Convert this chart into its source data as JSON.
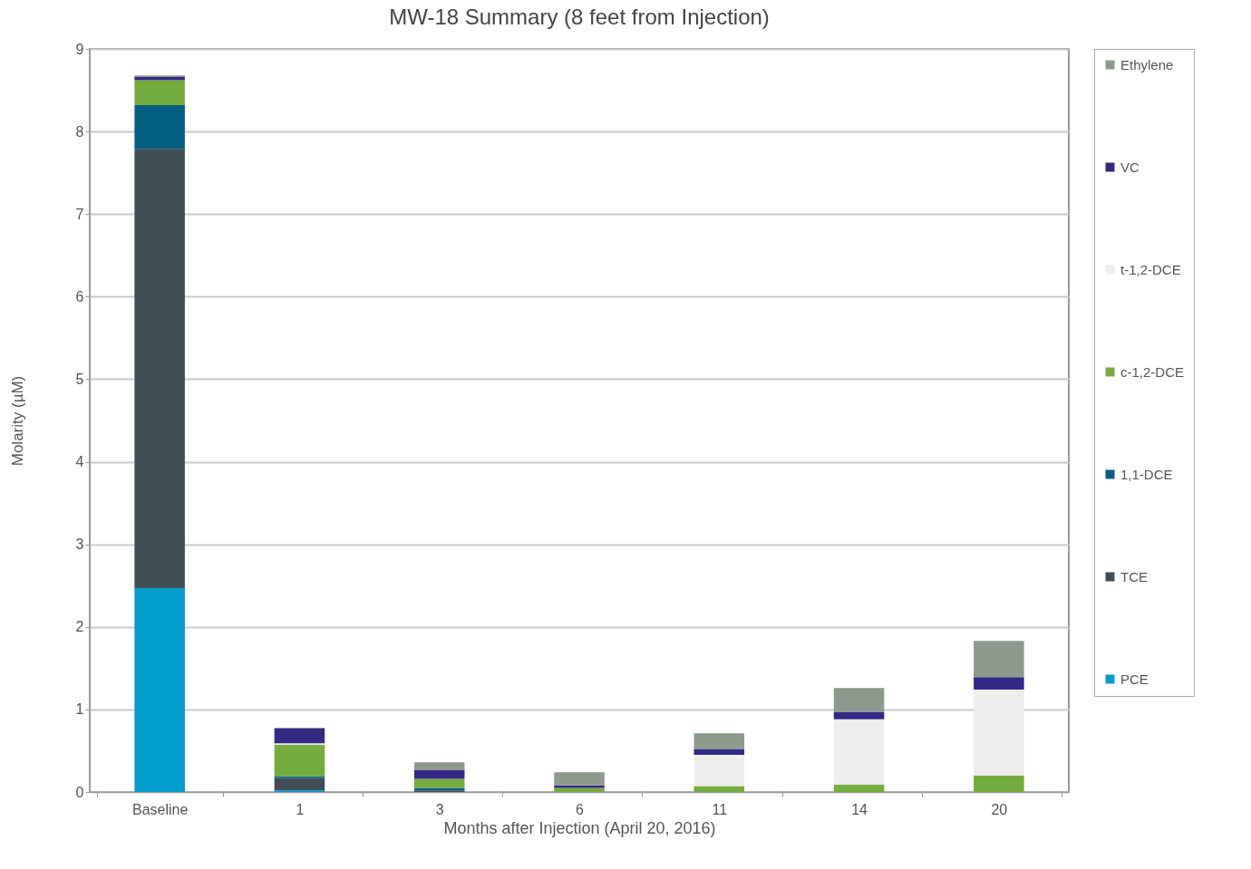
{
  "chart_data": {
    "type": "bar",
    "title": "MW-18 Summary (8 feet from Injection)",
    "xlabel": "Months after Injection (April 20, 2016)",
    "ylabel": "Molarity (µM)",
    "categories": [
      "Baseline",
      "1",
      "3",
      "6",
      "11",
      "14",
      "20"
    ],
    "stacked": true,
    "ylim": [
      0,
      9
    ],
    "yticks": [
      0,
      1,
      2,
      3,
      4,
      5,
      6,
      7,
      8,
      9
    ],
    "grid": "y",
    "legend": "right",
    "series": [
      {
        "name": "PCE",
        "color": "#009ccd",
        "values": [
          2.47,
          0.02,
          0,
          0,
          0,
          0,
          0
        ]
      },
      {
        "name": "TCE",
        "color": "#404d55",
        "values": [
          5.32,
          0.15,
          0.02,
          0,
          0,
          0,
          0
        ]
      },
      {
        "name": "1,1-DCE",
        "color": "#025e80",
        "values": [
          0.53,
          0.02,
          0.03,
          0,
          0,
          0,
          0
        ]
      },
      {
        "name": "c-1,2-DCE",
        "color": "#74ac3e",
        "values": [
          0.3,
          0.38,
          0.11,
          0.05,
          0.07,
          0.09,
          0.2
        ]
      },
      {
        "name": "t-1,2-DCE",
        "color": "#ededeb",
        "values": [
          0,
          0.02,
          null,
          null,
          0.38,
          0.79,
          1.04
        ]
      },
      {
        "name": "VC",
        "color": "#332a85",
        "values": [
          0.04,
          0.18,
          0.11,
          0.03,
          0.07,
          0.09,
          0.15
        ]
      },
      {
        "name": "Ethylene",
        "color": "#8f9a8f",
        "values": [
          0.02,
          0.01,
          0.09,
          0.16,
          0.19,
          0.29,
          0.44
        ]
      }
    ]
  }
}
